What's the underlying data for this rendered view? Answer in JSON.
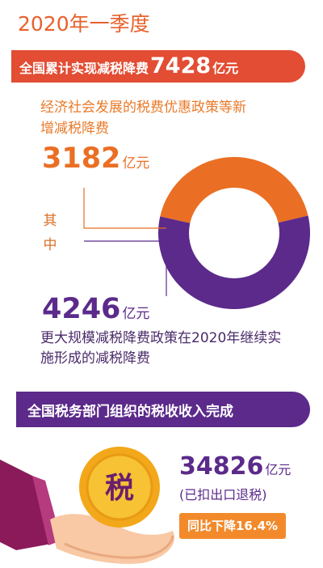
{
  "header": {
    "title": "2020年一季度"
  },
  "banner_total": {
    "prefix": "全国累计实现减税降费",
    "amount": "7428",
    "unit": "亿元"
  },
  "policy_new": {
    "description": "经济社会发展的税费优惠政策等新增减税降费",
    "amount": "3182",
    "unit": "亿元"
  },
  "qizhong_label": "其中",
  "policy_continued": {
    "amount": "4246",
    "unit": "亿元",
    "description": "更大规模减税降费政策在2020年继续实施形成的减税降费"
  },
  "banner_revenue": {
    "text": "全国税务部门组织的税收收入完成"
  },
  "revenue": {
    "coin_label": "税",
    "amount": "34826",
    "unit": "亿元",
    "note": "(已扣出口退税)",
    "change": "同比下降16.4%"
  },
  "colors": {
    "orange": "#ea6f24",
    "purple": "#5b2a8a",
    "red_banner": "#e24d34",
    "coin_gold": "#f2b21b"
  },
  "chart_data": {
    "type": "pie",
    "donut": true,
    "categories": [
      "经济社会发展的税费优惠政策等新增减税降费",
      "更大规模减税降费政策在2020年继续实施形成的减税降费"
    ],
    "values": [
      3182,
      4246
    ],
    "total": 7428,
    "unit": "亿元",
    "slice_colors": [
      "#ea6f24",
      "#5b2a8a"
    ]
  }
}
